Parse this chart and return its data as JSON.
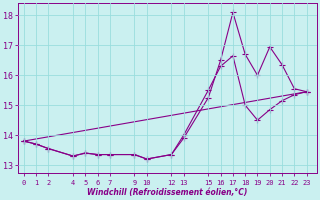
{
  "xlabel": "Windchill (Refroidissement éolien,°C)",
  "background_color": "#caf0f0",
  "line_color": "#880088",
  "grid_color": "#99dddd",
  "ylim": [
    12.75,
    18.4
  ],
  "xlim": [
    -0.5,
    23.8
  ],
  "yticks": [
    13,
    14,
    15,
    16,
    17,
    18
  ],
  "xticks": [
    0,
    1,
    2,
    4,
    5,
    6,
    7,
    9,
    10,
    12,
    13,
    15,
    16,
    17,
    18,
    19,
    20,
    21,
    22,
    23
  ],
  "series1_x": [
    0,
    1,
    2,
    4,
    5,
    6,
    7,
    9,
    10,
    12,
    13,
    15,
    16,
    17,
    18,
    19,
    20,
    21,
    22,
    23
  ],
  "series1_y": [
    13.8,
    13.7,
    13.55,
    13.3,
    13.4,
    13.35,
    13.35,
    13.35,
    13.2,
    13.35,
    13.9,
    15.25,
    16.5,
    18.1,
    16.7,
    16.0,
    16.95,
    16.35,
    15.55,
    15.45
  ],
  "series2_x": [
    0,
    1,
    2,
    4,
    5,
    6,
    7,
    9,
    10,
    12,
    13,
    15,
    16,
    17,
    18,
    19,
    20,
    21,
    22,
    23
  ],
  "series2_y": [
    13.8,
    13.7,
    13.55,
    13.3,
    13.4,
    13.35,
    13.35,
    13.35,
    13.2,
    13.35,
    14.0,
    15.5,
    16.3,
    16.65,
    15.0,
    14.5,
    14.85,
    15.15,
    15.35,
    15.45
  ],
  "series3_x": [
    0,
    23
  ],
  "series3_y": [
    13.8,
    15.45
  ]
}
